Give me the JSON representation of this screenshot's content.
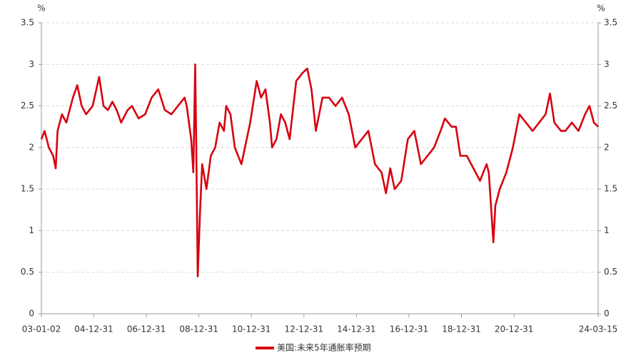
{
  "chart_data": {
    "type": "line",
    "y_label": "%",
    "y2_label": "%",
    "x": [
      "03-01-02",
      "03-02-15",
      "03-04-15",
      "03-06-15",
      "03-07-20",
      "03-08-15",
      "03-10-15",
      "03-12-15",
      "04-03-15",
      "04-05-15",
      "04-07-15",
      "04-09-15",
      "04-12-15",
      "05-03-15",
      "05-05-15",
      "05-07-15",
      "05-09-15",
      "05-11-15",
      "06-01-15",
      "06-04-15",
      "06-06-15",
      "06-09-15",
      "06-12-15",
      "07-03-15",
      "07-06-15",
      "07-09-15",
      "07-12-15",
      "08-03-15",
      "08-06-15",
      "08-07-15",
      "08-09-15",
      "08-10-15",
      "08-11-10",
      "08-11-25",
      "08-12-15",
      "09-01-15",
      "09-02-15",
      "09-04-15",
      "09-06-15",
      "09-08-15",
      "09-10-15",
      "09-12-15",
      "10-01-15",
      "10-03-15",
      "10-05-15",
      "10-08-15",
      "10-12-15",
      "11-03-15",
      "11-05-15",
      "11-07-15",
      "11-09-15",
      "11-10-15",
      "11-12-15",
      "12-02-15",
      "12-04-15",
      "12-06-15",
      "12-09-15",
      "12-12-15",
      "13-02-15",
      "13-04-15",
      "13-06-15",
      "13-09-15",
      "13-12-15",
      "14-03-15",
      "14-06-15",
      "14-09-15",
      "14-12-15",
      "15-03-15",
      "15-06-15",
      "15-09-15",
      "15-12-15",
      "16-02-15",
      "16-04-15",
      "16-06-15",
      "16-09-15",
      "16-12-15",
      "17-03-15",
      "17-06-15",
      "17-09-15",
      "17-12-15",
      "18-03-15",
      "18-05-15",
      "18-08-15",
      "18-10-15",
      "18-12-15",
      "19-03-15",
      "19-06-15",
      "19-09-15",
      "19-12-15",
      "20-01-15",
      "20-03-19",
      "20-04-15",
      "20-06-15",
      "20-09-15",
      "20-12-15",
      "21-03-15",
      "21-06-15",
      "21-09-15",
      "21-12-15",
      "22-03-15",
      "22-05-15",
      "22-07-15",
      "22-10-15",
      "22-12-15",
      "23-03-15",
      "23-06-15",
      "23-09-15",
      "23-11-15",
      "24-01-15",
      "24-03-15"
    ],
    "series": [
      {
        "name": "美国:未来5年通胀率预期",
        "color": "#d7000f",
        "values": [
          2.1,
          2.2,
          2.0,
          1.9,
          1.75,
          2.2,
          2.4,
          2.3,
          2.6,
          2.75,
          2.5,
          2.4,
          2.5,
          2.85,
          2.5,
          2.45,
          2.55,
          2.45,
          2.3,
          2.45,
          2.5,
          2.35,
          2.4,
          2.6,
          2.7,
          2.45,
          2.4,
          2.5,
          2.6,
          2.5,
          2.1,
          1.7,
          3.0,
          2.0,
          0.45,
          1.2,
          1.8,
          1.5,
          1.9,
          2.0,
          2.3,
          2.2,
          2.5,
          2.4,
          2.0,
          1.8,
          2.3,
          2.8,
          2.6,
          2.7,
          2.3,
          2.0,
          2.1,
          2.4,
          2.3,
          2.1,
          2.8,
          2.9,
          2.95,
          2.7,
          2.2,
          2.6,
          2.6,
          2.5,
          2.6,
          2.4,
          2.0,
          2.1,
          2.2,
          1.8,
          1.7,
          1.45,
          1.75,
          1.5,
          1.6,
          2.1,
          2.2,
          1.8,
          1.9,
          2.0,
          2.2,
          2.35,
          2.25,
          2.25,
          1.9,
          1.9,
          1.75,
          1.6,
          1.8,
          1.7,
          0.86,
          1.3,
          1.5,
          1.7,
          2.0,
          2.4,
          2.3,
          2.2,
          2.3,
          2.4,
          2.65,
          2.3,
          2.2,
          2.2,
          2.3,
          2.2,
          2.4,
          2.5,
          2.3,
          2.25
        ]
      }
    ],
    "xlim": [
      "03-01-02",
      "24-03-15"
    ],
    "xticks": [
      "03-01-02",
      "04-12-31",
      "06-12-31",
      "08-12-31",
      "10-12-31",
      "12-12-31",
      "14-12-31",
      "16-12-31",
      "18-12-31",
      "20-12-31",
      "24-03-15"
    ],
    "ylim": [
      0,
      3.5
    ],
    "yticks": [
      0,
      0.5,
      1,
      1.5,
      2,
      2.5,
      3,
      3.5
    ],
    "y2lim": [
      0,
      3.5
    ],
    "y2ticks": [
      0,
      0.5,
      1,
      1.5,
      2,
      2.5,
      3,
      3.5
    ],
    "grid": true,
    "legend": "bottom"
  }
}
